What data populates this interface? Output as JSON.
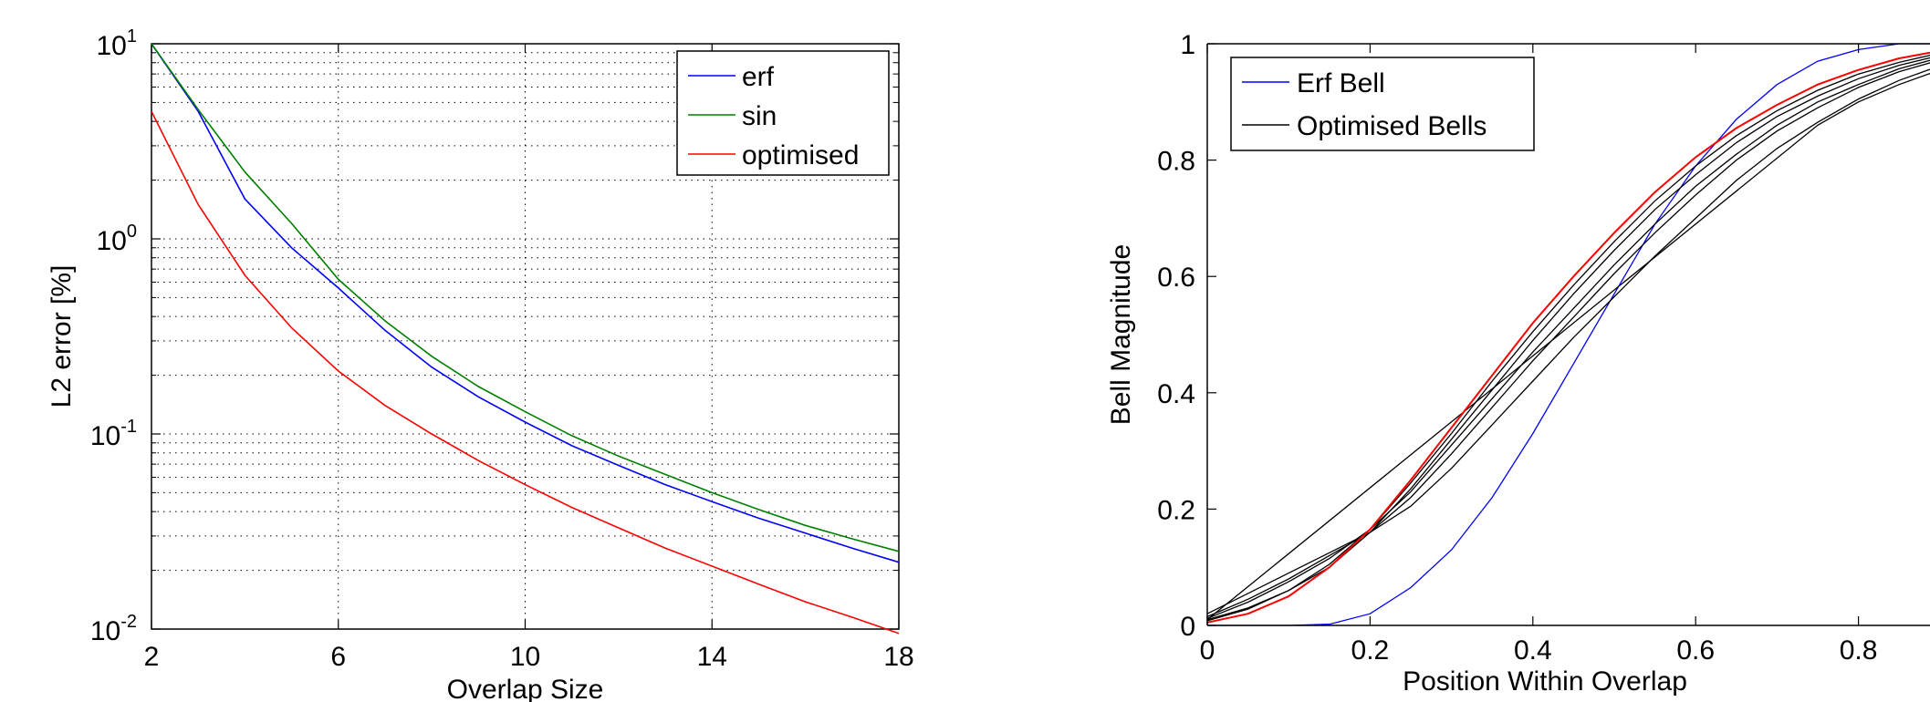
{
  "chart_data": [
    {
      "type": "line",
      "title": "",
      "xlabel": "Overlap Size",
      "ylabel": "L2 error [%]",
      "xlim": [
        2,
        18
      ],
      "ylim": [
        0.01,
        10
      ],
      "yscale": "log",
      "grid": true,
      "xticks": [
        2,
        6,
        10,
        14,
        18
      ],
      "xtick_labels": [
        "2",
        "6",
        "10",
        "14",
        "18"
      ],
      "yticks": [
        0.01,
        0.1,
        1,
        10
      ],
      "ytick_labels": [
        {
          "base": "10",
          "exp": "-2"
        },
        {
          "base": "10",
          "exp": "-1"
        },
        {
          "base": "10",
          "exp": "0"
        },
        {
          "base": "10",
          "exp": "1"
        }
      ],
      "legend": "top-right",
      "series": [
        {
          "name": "erf",
          "color": "#0000ff",
          "x": [
            2,
            3,
            4,
            5,
            6,
            7,
            8,
            9,
            10,
            11,
            12,
            13,
            14,
            15,
            16,
            17,
            18
          ],
          "y": [
            10,
            4.5,
            1.6,
            0.9,
            0.56,
            0.34,
            0.22,
            0.155,
            0.115,
            0.087,
            0.069,
            0.055,
            0.045,
            0.037,
            0.031,
            0.026,
            0.022
          ]
        },
        {
          "name": "sin",
          "color": "#008000",
          "x": [
            2,
            3,
            4,
            5,
            6,
            7,
            8,
            9,
            10,
            11,
            12,
            13,
            14,
            15,
            16,
            17,
            18
          ],
          "y": [
            10,
            4.6,
            2.2,
            1.2,
            0.62,
            0.38,
            0.25,
            0.175,
            0.13,
            0.098,
            0.077,
            0.062,
            0.05,
            0.041,
            0.034,
            0.029,
            0.025
          ]
        },
        {
          "name": "optimised",
          "color": "#ff0000",
          "x": [
            2,
            3,
            4,
            5,
            6,
            7,
            8,
            9,
            10,
            11,
            12,
            13,
            14,
            15,
            16,
            17,
            18
          ],
          "y": [
            4.5,
            1.5,
            0.65,
            0.35,
            0.21,
            0.14,
            0.1,
            0.073,
            0.055,
            0.042,
            0.033,
            0.026,
            0.021,
            0.017,
            0.0138,
            0.0115,
            0.0095
          ]
        }
      ]
    },
    {
      "type": "line",
      "title": "",
      "xlabel": "Position Within Overlap",
      "ylabel": "Bell Magnitude",
      "xlim": [
        0,
        1
      ],
      "ylim": [
        0,
        1
      ],
      "grid": false,
      "xticks": [
        0,
        0.2,
        0.4,
        0.6,
        0.8
      ],
      "xtick_labels": [
        "0",
        "0.2",
        "0.4",
        "0.6",
        "0.8"
      ],
      "yticks": [
        0,
        0.2,
        0.4,
        0.6,
        0.8,
        1
      ],
      "ytick_labels": [
        "0",
        "0.2",
        "0.4",
        "0.6",
        "0.8",
        "1"
      ],
      "legend": "top-left",
      "series": [
        {
          "name": "Erf Bell",
          "color": "#0000ff",
          "x": [
            0,
            0.1,
            0.15,
            0.2,
            0.25,
            0.3,
            0.35,
            0.4,
            0.45,
            0.5,
            0.55,
            0.6,
            0.65,
            0.7,
            0.75,
            0.8,
            0.85,
            0.9,
            0.95,
            1
          ],
          "y": [
            0,
            0,
            0.002,
            0.02,
            0.065,
            0.13,
            0.22,
            0.33,
            0.45,
            0.57,
            0.69,
            0.79,
            0.87,
            0.93,
            0.97,
            0.99,
            1,
            1,
            1,
            1
          ]
        },
        {
          "name": "Optimised Bells",
          "color": "#000000",
          "x": [
            0,
            0.05,
            0.1,
            0.15,
            0.2,
            0.25,
            0.3,
            0.35,
            0.4,
            0.45,
            0.5,
            0.55,
            0.6,
            0.65,
            0.7,
            0.75,
            0.8,
            0.85,
            0.9,
            0.95,
            1
          ],
          "y": [
            0.005,
            0.02,
            0.05,
            0.1,
            0.165,
            0.25,
            0.34,
            0.43,
            0.52,
            0.6,
            0.675,
            0.745,
            0.805,
            0.855,
            0.895,
            0.93,
            0.955,
            0.975,
            0.988,
            0.995,
            1
          ]
        },
        {
          "name": "",
          "color": "#000000",
          "x": [
            0,
            0.05,
            0.1,
            0.15,
            0.2,
            0.25,
            0.3,
            0.35,
            0.4,
            0.45,
            0.5,
            0.55,
            0.6,
            0.65,
            0.7,
            0.75,
            0.8,
            0.85,
            0.9,
            0.95,
            1
          ],
          "y": [
            0.01,
            0.03,
            0.06,
            0.1,
            0.16,
            0.235,
            0.32,
            0.405,
            0.49,
            0.57,
            0.645,
            0.715,
            0.775,
            0.83,
            0.875,
            0.91,
            0.94,
            0.963,
            0.98,
            0.992,
            1
          ]
        },
        {
          "name": "",
          "color": "#000000",
          "x": [
            0,
            0.05,
            0.1,
            0.15,
            0.2,
            0.25,
            0.3,
            0.35,
            0.4,
            0.45,
            0.5,
            0.55,
            0.6,
            0.65,
            0.7,
            0.75,
            0.8,
            0.85,
            0.9,
            0.95,
            1
          ],
          "y": [
            0.015,
            0.045,
            0.08,
            0.12,
            0.16,
            0.22,
            0.295,
            0.375,
            0.455,
            0.53,
            0.605,
            0.675,
            0.74,
            0.8,
            0.85,
            0.89,
            0.925,
            0.952,
            0.972,
            0.988,
            1
          ]
        },
        {
          "name": "",
          "color": "#000000",
          "x": [
            0,
            0.05,
            0.1,
            0.15,
            0.2,
            0.25,
            0.3,
            0.35,
            0.4,
            0.45,
            0.5,
            0.55,
            0.6,
            0.65,
            0.7,
            0.75,
            0.8,
            0.85,
            0.9,
            0.95,
            1
          ],
          "y": [
            0.02,
            0.055,
            0.09,
            0.125,
            0.16,
            0.205,
            0.27,
            0.345,
            0.42,
            0.495,
            0.565,
            0.635,
            0.7,
            0.765,
            0.82,
            0.865,
            0.905,
            0.937,
            0.962,
            0.982,
            1
          ]
        },
        {
          "name": "",
          "color": "#000000",
          "x": [
            0,
            0.05,
            0.1,
            0.15,
            0.2,
            0.25,
            0.3,
            0.35,
            0.4,
            0.45,
            0.5,
            0.55,
            0.6,
            0.65,
            0.7,
            0.75,
            0.8,
            0.85,
            0.9,
            0.95,
            1
          ],
          "y": [
            0.012,
            0.04,
            0.075,
            0.115,
            0.165,
            0.23,
            0.31,
            0.39,
            0.47,
            0.545,
            0.62,
            0.69,
            0.755,
            0.81,
            0.86,
            0.9,
            0.93,
            0.957,
            0.976,
            0.99,
            1
          ]
        },
        {
          "name": "",
          "color": "#000000",
          "x": [
            0,
            0.05,
            0.1,
            0.15,
            0.2,
            0.25,
            0.3,
            0.35,
            0.4,
            0.45,
            0.5,
            0.55,
            0.6,
            0.65,
            0.7,
            0.75,
            0.8,
            0.85,
            0.9,
            0.95,
            1
          ],
          "y": [
            0.008,
            0.028,
            0.06,
            0.105,
            0.165,
            0.245,
            0.33,
            0.42,
            0.505,
            0.585,
            0.66,
            0.73,
            0.79,
            0.842,
            0.885,
            0.92,
            0.948,
            0.968,
            0.984,
            0.994,
            1
          ]
        },
        {
          "name": "",
          "color": "#000000",
          "x": [
            0,
            0.75,
            0.8,
            0.85,
            0.9,
            0.95,
            1
          ],
          "y": [
            0.01,
            0.86,
            0.9,
            0.93,
            0.955,
            0.975,
            1
          ]
        },
        {
          "name": "",
          "color": "#ff0000",
          "x": [
            0,
            0.05,
            0.1,
            0.15,
            0.2,
            0.25,
            0.3,
            0.35,
            0.4,
            0.45,
            0.5,
            0.55,
            0.6,
            0.65,
            0.7,
            0.75,
            0.8,
            0.85,
            0.9,
            0.95,
            1
          ],
          "y": [
            0.005,
            0.02,
            0.05,
            0.1,
            0.165,
            0.25,
            0.34,
            0.43,
            0.52,
            0.6,
            0.675,
            0.745,
            0.805,
            0.855,
            0.895,
            0.93,
            0.955,
            0.975,
            0.988,
            0.995,
            1
          ]
        }
      ]
    }
  ]
}
